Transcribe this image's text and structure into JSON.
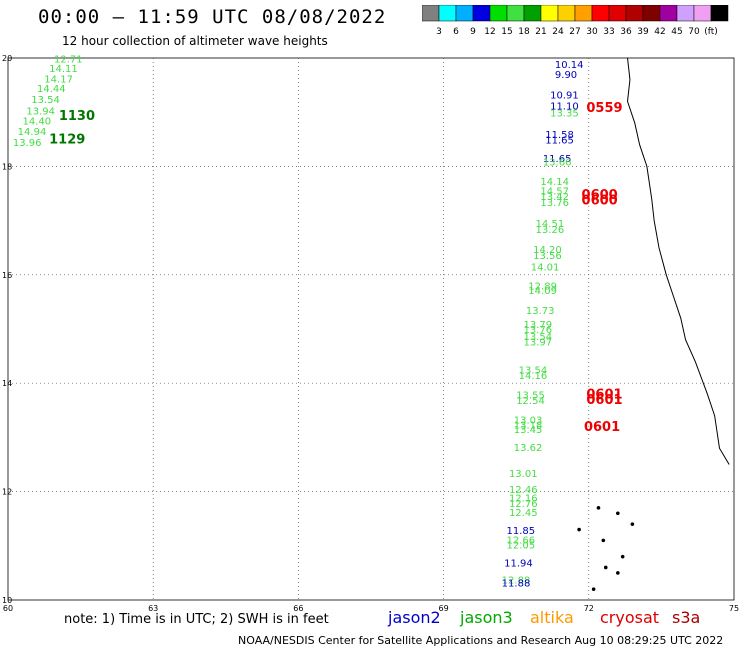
{
  "header": {
    "title": "00:00 – 11:59 UTC 08/08/2022",
    "subtitle": "12 hour collection of altimeter wave heights"
  },
  "colorbar": {
    "unit": "(ft)",
    "colors": [
      "#808080",
      "#00ffff",
      "#00b0ff",
      "#0000e0",
      "#00e000",
      "#40e040",
      "#00a000",
      "#ffff00",
      "#ffd000",
      "#ffa000",
      "#ff0000",
      "#e00000",
      "#b00000",
      "#800000",
      "#a000a0",
      "#d0a0ff",
      "#f0a0f0",
      "#000000"
    ],
    "labels": [
      "3",
      "6",
      "9",
      "12",
      "15",
      "18",
      "21",
      "24",
      "27",
      "30",
      "33",
      "36",
      "39",
      "42",
      "45",
      "70"
    ]
  },
  "axes": {
    "x_ticks": [
      "60",
      "63",
      "66",
      "69",
      "72",
      "75"
    ],
    "y_ticks": [
      "20",
      "18",
      "16",
      "14",
      "12",
      "10"
    ],
    "x_range": [
      60,
      75
    ],
    "y_range": [
      10,
      20
    ]
  },
  "colors": {
    "jason2": "#0000cc",
    "jason3": "#00aa00",
    "altika": "#ff9900",
    "cryosat": "#dd0000",
    "s3a": "#aa0000",
    "obs_green": "#44dd44",
    "obs_blue": "#0000bb",
    "pass_dark": "#007700",
    "pass_red": "#ee0000"
  },
  "observations": [
    {
      "lon": 60.95,
      "lat": 19.92,
      "v": "12.71",
      "c": "green"
    },
    {
      "lon": 60.85,
      "lat": 19.74,
      "v": "14.11",
      "c": "green"
    },
    {
      "lon": 60.75,
      "lat": 19.55,
      "v": "14.17",
      "c": "green"
    },
    {
      "lon": 60.6,
      "lat": 19.37,
      "v": "14.44",
      "c": "green"
    },
    {
      "lon": 60.48,
      "lat": 19.17,
      "v": "13.54",
      "c": "green"
    },
    {
      "lon": 60.38,
      "lat": 18.96,
      "v": "13.94",
      "c": "green"
    },
    {
      "lon": 60.3,
      "lat": 18.77,
      "v": "14.40",
      "c": "green"
    },
    {
      "lon": 60.2,
      "lat": 18.58,
      "v": "14.94",
      "c": "green"
    },
    {
      "lon": 60.1,
      "lat": 18.38,
      "v": "13.96",
      "c": "green"
    },
    {
      "lon": 71.3,
      "lat": 19.82,
      "v": "10.14",
      "c": "blue"
    },
    {
      "lon": 71.3,
      "lat": 19.63,
      "v": "9.90",
      "c": "blue"
    },
    {
      "lon": 71.2,
      "lat": 19.25,
      "v": "10.91",
      "c": "blue"
    },
    {
      "lon": 71.2,
      "lat": 19.05,
      "v": "11.10",
      "c": "blue"
    },
    {
      "lon": 71.2,
      "lat": 18.92,
      "v": "13.35",
      "c": "green"
    },
    {
      "lon": 71.1,
      "lat": 18.52,
      "v": "11.58",
      "c": "blue"
    },
    {
      "lon": 71.1,
      "lat": 18.42,
      "v": "11.65",
      "c": "blue"
    },
    {
      "lon": 71.05,
      "lat": 18.08,
      "v": "11.65",
      "c": "blue"
    },
    {
      "lon": 71.05,
      "lat": 18.02,
      "v": "13.66",
      "c": "green"
    },
    {
      "lon": 71.0,
      "lat": 17.66,
      "v": "14.14",
      "c": "green"
    },
    {
      "lon": 71.0,
      "lat": 17.48,
      "v": "14.57",
      "c": "green"
    },
    {
      "lon": 71.0,
      "lat": 17.38,
      "v": "13.42",
      "c": "green"
    },
    {
      "lon": 71.0,
      "lat": 17.27,
      "v": "13.76",
      "c": "green"
    },
    {
      "lon": 70.9,
      "lat": 16.88,
      "v": "14.51",
      "c": "green"
    },
    {
      "lon": 70.9,
      "lat": 16.77,
      "v": "13.26",
      "c": "green"
    },
    {
      "lon": 70.85,
      "lat": 16.4,
      "v": "14.20",
      "c": "green"
    },
    {
      "lon": 70.85,
      "lat": 16.29,
      "v": "13.56",
      "c": "green"
    },
    {
      "lon": 70.8,
      "lat": 16.08,
      "v": "14.01",
      "c": "green"
    },
    {
      "lon": 70.75,
      "lat": 15.73,
      "v": "12.89",
      "c": "green"
    },
    {
      "lon": 70.75,
      "lat": 15.65,
      "v": "14.09",
      "c": "green"
    },
    {
      "lon": 70.7,
      "lat": 15.28,
      "v": "13.73",
      "c": "green"
    },
    {
      "lon": 70.65,
      "lat": 15.02,
      "v": "13.79",
      "c": "green"
    },
    {
      "lon": 70.65,
      "lat": 14.93,
      "v": "13.76",
      "c": "green"
    },
    {
      "lon": 70.65,
      "lat": 14.8,
      "v": "13.54",
      "c": "green"
    },
    {
      "lon": 70.65,
      "lat": 14.7,
      "v": "13.97",
      "c": "green"
    },
    {
      "lon": 70.55,
      "lat": 14.18,
      "v": "13.54",
      "c": "green"
    },
    {
      "lon": 70.55,
      "lat": 14.08,
      "v": "14.16",
      "c": "green"
    },
    {
      "lon": 70.5,
      "lat": 13.72,
      "v": "13.55",
      "c": "green"
    },
    {
      "lon": 70.5,
      "lat": 13.62,
      "v": "12.54",
      "c": "green"
    },
    {
      "lon": 70.45,
      "lat": 13.26,
      "v": "13.03",
      "c": "green"
    },
    {
      "lon": 70.45,
      "lat": 13.16,
      "v": "13.18",
      "c": "green"
    },
    {
      "lon": 70.45,
      "lat": 13.08,
      "v": "13.45",
      "c": "green"
    },
    {
      "lon": 70.45,
      "lat": 12.75,
      "v": "13.62",
      "c": "green"
    },
    {
      "lon": 70.35,
      "lat": 12.27,
      "v": "13.01",
      "c": "green"
    },
    {
      "lon": 70.35,
      "lat": 11.97,
      "v": "12.46",
      "c": "green"
    },
    {
      "lon": 70.35,
      "lat": 11.82,
      "v": "12.16",
      "c": "green"
    },
    {
      "lon": 70.35,
      "lat": 11.72,
      "v": "12.76",
      "c": "green"
    },
    {
      "lon": 70.35,
      "lat": 11.55,
      "v": "12.45",
      "c": "green"
    },
    {
      "lon": 70.3,
      "lat": 11.22,
      "v": "11.85",
      "c": "blue"
    },
    {
      "lon": 70.3,
      "lat": 11.04,
      "v": "12.66",
      "c": "green"
    },
    {
      "lon": 70.3,
      "lat": 10.95,
      "v": "12.05",
      "c": "green"
    },
    {
      "lon": 70.25,
      "lat": 10.62,
      "v": "11.94",
      "c": "blue"
    },
    {
      "lon": 70.2,
      "lat": 10.3,
      "v": "12.88",
      "c": "green"
    },
    {
      "lon": 70.2,
      "lat": 10.25,
      "v": "11.88",
      "c": "blue"
    }
  ],
  "passes": [
    {
      "lon": 61.05,
      "lat": 18.86,
      "v": "1130",
      "c": "dark"
    },
    {
      "lon": 60.85,
      "lat": 18.42,
      "v": "1129",
      "c": "dark"
    },
    {
      "lon": 71.95,
      "lat": 19.0,
      "v": "0559",
      "c": "red"
    },
    {
      "lon": 71.85,
      "lat": 17.4,
      "v": "0600",
      "c": "red"
    },
    {
      "lon": 71.85,
      "lat": 17.3,
      "v": "0600",
      "c": "red"
    },
    {
      "lon": 71.95,
      "lat": 13.72,
      "v": "0601",
      "c": "red"
    },
    {
      "lon": 71.95,
      "lat": 13.62,
      "v": "0601",
      "c": "red"
    },
    {
      "lon": 71.9,
      "lat": 13.12,
      "v": "0601",
      "c": "red"
    }
  ],
  "note": "note: 1) Time is in UTC; 2) SWH is in feet",
  "satellites": {
    "jason2": "jason2",
    "jason3": "jason3",
    "altika": "altika",
    "cryosat": "cryosat",
    "s3a": "s3a"
  },
  "credit": "NOAA/NESDIS Center for Satellite Applications and Research   Aug 10 08:29:25 UTC 2022"
}
